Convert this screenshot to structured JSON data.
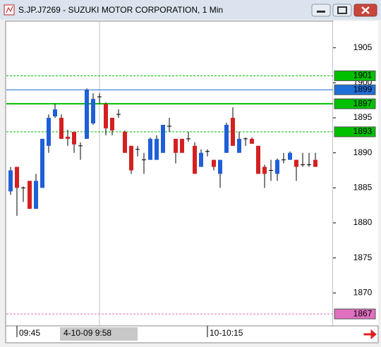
{
  "chart_data": {
    "type": "candlestick",
    "title": "S.JP.J7269 - SUZUKI MOTOR CORPORATION, 1 Min",
    "series": {
      "up_color": "#1f5fd8",
      "down_color": "#d42020",
      "wick_color": "#000000",
      "open": [
        1884.5,
        1888,
        1885,
        1886,
        1882,
        1885,
        1891,
        1895.2,
        1895,
        1892.3,
        1893,
        1891,
        1892,
        1894.2,
        1898,
        1897,
        1895,
        1895.5,
        1893,
        1891,
        1890.5,
        1889,
        1889,
        1889,
        1890,
        1893.8,
        1892,
        1892,
        1892,
        1891,
        1888,
        1890.2,
        1889,
        1887,
        1890,
        1895,
        1890,
        1892,
        1892,
        1891,
        1888,
        1887.5,
        1887,
        1889,
        1889,
        1889,
        1888.3,
        1888.3,
        1889
      ],
      "high": [
        1888,
        1888,
        1885.2,
        1886,
        1887,
        1892,
        1895.5,
        1897,
        1895.5,
        1893.3,
        1893,
        1891.5,
        1899.2,
        1898.5,
        1898.5,
        1897.2,
        1895,
        1896.2,
        1893.2,
        1891,
        1891,
        1890,
        1892.2,
        1892.5,
        1894,
        1895,
        1892,
        1892,
        1893,
        1891.5,
        1890.5,
        1890.5,
        1889,
        1889,
        1894.3,
        1896.5,
        1893,
        1892.2,
        1892.2,
        1891,
        1888.3,
        1889,
        1889.2,
        1890,
        1890.2,
        1889,
        1890,
        1890,
        1890
      ],
      "low": [
        1884,
        1881,
        1883,
        1882,
        1882,
        1885,
        1890,
        1895,
        1892,
        1891,
        1890,
        1889,
        1892,
        1894,
        1897,
        1892.5,
        1892.5,
        1895,
        1890,
        1887,
        1889.5,
        1887,
        1889,
        1889,
        1890,
        1893,
        1888.5,
        1890,
        1891.6,
        1887,
        1888,
        1889.5,
        1887.5,
        1885,
        1890,
        1891,
        1890,
        1891,
        1891.3,
        1887,
        1885,
        1886,
        1886,
        1888.5,
        1889,
        1886,
        1888,
        1888,
        1888
      ],
      "close": [
        1887.5,
        1885,
        1885,
        1882,
        1886,
        1892,
        1895,
        1896.2,
        1892,
        1892,
        1891.2,
        1891,
        1899,
        1897.7,
        1898,
        1893.5,
        1893.2,
        1895.5,
        1890,
        1887.5,
        1890.5,
        1889,
        1892,
        1892,
        1894,
        1893.8,
        1890,
        1890,
        1892,
        1887,
        1890,
        1890.2,
        1888,
        1889,
        1894,
        1891,
        1892,
        1892,
        1891.3,
        1887,
        1887,
        1887.5,
        1889,
        1889,
        1890,
        1888,
        1888.3,
        1888.3,
        1888
      ]
    },
    "ylim": [
      1865.3,
      1908.8
    ],
    "yticks": [
      1870,
      1875,
      1880,
      1885,
      1890,
      1895,
      1900,
      1905
    ],
    "xticks": [
      {
        "value": 1,
        "label": "09:45"
      },
      {
        "value": 31,
        "label": "10-10:15"
      }
    ],
    "crosshair": {
      "value": 14,
      "label": "4-10-09  9:58"
    },
    "levels": [
      {
        "value": 1901,
        "color": "#00c000",
        "style": "dashed"
      },
      {
        "value": 1899,
        "color": "#1f6fd8",
        "style": "solid"
      },
      {
        "value": 1897,
        "color": "#00c000",
        "style": "solid"
      },
      {
        "value": 1893,
        "color": "#00c000",
        "style": "dashed"
      },
      {
        "value": 1867,
        "color": "#e070c0",
        "style": "dashed"
      }
    ]
  }
}
